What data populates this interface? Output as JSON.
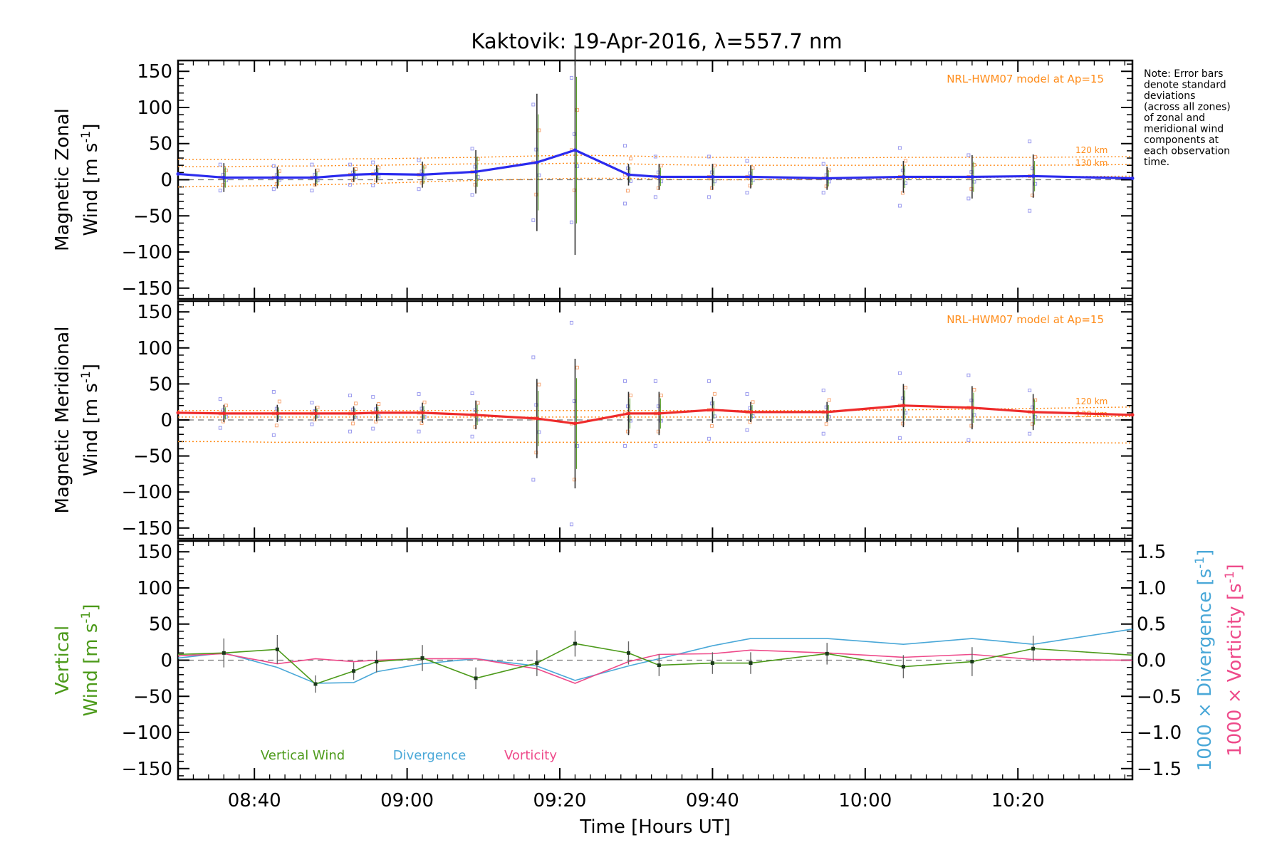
{
  "title": "Kaktovik: 19-Apr-2016, λ=557.7 nm",
  "note_lines": [
    "Note: Error bars",
    "denote standard",
    "deviations",
    "(across all zones)",
    "of zonal and",
    "meridional wind",
    "components at",
    "each observation",
    "time."
  ],
  "colors": {
    "zonal": "#2b2bee",
    "meridional": "#ee2b2b",
    "model": "#ff8c1a",
    "vertical": "#4c9a1a",
    "divergence": "#4aa8d8",
    "vorticity": "#ee4a8a",
    "zone_blue": "#9a9aee",
    "zone_orange": "#f7a878",
    "errorbar": "#333333"
  },
  "chart_data": [
    {
      "type": "line",
      "panel": "zonal",
      "ylabel_line1": "Magnetic Zonal",
      "ylabel_line2": "Wind [m s",
      "ylabel_sup": "-1",
      "ylabel_close": "]",
      "model_label": "NRL-HWM07 model at Ap=15",
      "model_alt_labels": [
        "120 km",
        "130 km"
      ],
      "ylim": [
        -165,
        165
      ],
      "yticks": [
        -150,
        -100,
        -50,
        0,
        50,
        100,
        150
      ],
      "xlim": [
        "08:30",
        "10:35"
      ],
      "xticks": [
        "08:40",
        "09:00",
        "09:20",
        "09:40",
        "10:00",
        "10:20"
      ],
      "x": [
        "08:30",
        "08:36",
        "08:43",
        "08:48",
        "08:53",
        "08:56",
        "09:02",
        "09:09",
        "09:17",
        "09:22",
        "09:29",
        "09:33",
        "09:40",
        "09:45",
        "09:55",
        "10:05",
        "10:14",
        "10:22",
        "10:35"
      ],
      "values": [
        8,
        3,
        3,
        3,
        7,
        8,
        7,
        11,
        24,
        41,
        7,
        4,
        4,
        4,
        2,
        4,
        4,
        5,
        2
      ],
      "errors": [
        0,
        20,
        15,
        12,
        10,
        12,
        18,
        30,
        95,
        145,
        15,
        18,
        18,
        16,
        16,
        22,
        30,
        30,
        0
      ],
      "zone_spread": [
        0,
        18,
        16,
        18,
        14,
        16,
        20,
        32,
        80,
        100,
        40,
        28,
        28,
        22,
        20,
        40,
        30,
        48,
        25
      ],
      "model_series": [
        {
          "values": [
            28,
            28,
            28,
            28,
            29,
            29,
            30,
            31,
            33,
            34,
            33,
            32,
            31,
            31,
            30,
            31,
            31,
            31,
            32
          ]
        },
        {
          "values": [
            18,
            18,
            19,
            19,
            20,
            20,
            21,
            22,
            22,
            23,
            22,
            21,
            20,
            20,
            20,
            20,
            20,
            20,
            21
          ]
        },
        {
          "values": [
            -10,
            -9,
            -8,
            -7,
            -6,
            -5,
            -3,
            -1,
            1,
            2,
            2,
            1,
            0,
            0,
            1,
            2,
            3,
            4,
            5
          ]
        }
      ]
    },
    {
      "type": "line",
      "panel": "meridional",
      "ylabel_line1": "Magnetic Meridional",
      "ylabel_line2": "Wind [m s",
      "ylabel_sup": "-1",
      "ylabel_close": "]",
      "model_label": "NRL-HWM07 model at Ap=15",
      "model_alt_labels": [
        "120 km",
        "130 km"
      ],
      "ylim": [
        -165,
        165
      ],
      "yticks": [
        -150,
        -100,
        -50,
        0,
        50,
        100,
        150
      ],
      "xlim": [
        "08:30",
        "10:35"
      ],
      "xticks": [
        "08:40",
        "09:00",
        "09:20",
        "09:40",
        "10:00",
        "10:20"
      ],
      "x": [
        "08:30",
        "08:36",
        "08:43",
        "08:48",
        "08:53",
        "08:56",
        "09:02",
        "09:09",
        "09:17",
        "09:22",
        "09:29",
        "09:33",
        "09:40",
        "09:45",
        "09:55",
        "10:05",
        "10:14",
        "10:22",
        "10:35"
      ],
      "values": [
        10,
        9,
        9,
        9,
        9,
        10,
        10,
        7,
        2,
        -5,
        9,
        9,
        14,
        11,
        11,
        20,
        17,
        11,
        7
      ],
      "errors": [
        0,
        12,
        12,
        10,
        10,
        12,
        14,
        20,
        55,
        90,
        30,
        30,
        18,
        14,
        14,
        30,
        30,
        25,
        0
      ],
      "zone_spread": [
        0,
        20,
        30,
        15,
        25,
        22,
        26,
        30,
        85,
        140,
        45,
        45,
        40,
        25,
        30,
        45,
        45,
        30,
        30
      ],
      "model_series": [
        {
          "values": [
            13,
            13,
            13,
            13,
            13,
            13,
            13,
            13,
            13,
            13,
            13,
            13,
            13,
            13,
            13,
            14,
            15,
            16,
            18
          ]
        },
        {
          "values": [
            -30,
            -30,
            -31,
            -31,
            -31,
            -31,
            -31,
            -31,
            -31,
            -31,
            -31,
            -31,
            -31,
            -31,
            -31,
            -31,
            -31,
            -31,
            -32
          ]
        },
        {
          "values": [
            4,
            4,
            4,
            4,
            4,
            4,
            4,
            4,
            4,
            4,
            4,
            4,
            4,
            4,
            4,
            4,
            4,
            4,
            5
          ]
        }
      ]
    },
    {
      "type": "line",
      "panel": "vertical",
      "ylabel_line1": "Vertical",
      "ylabel_line2": "Wind [m s",
      "ylabel_sup": "-1",
      "ylabel_close": "]",
      "ylim": [
        -165,
        165
      ],
      "yticks": [
        -150,
        -100,
        -50,
        0,
        50,
        100,
        150
      ],
      "y2lim": [
        -1.65,
        1.65
      ],
      "y2ticks": [
        "-1.5",
        "-1.0",
        "-0.5",
        "0.0",
        "0.5",
        "1.0",
        "1.5"
      ],
      "y2label_div": "1000 × Divergence [s",
      "y2label_vor": "1000 × Vorticity [s",
      "y2label_sup": "-1",
      "y2label_close": "]",
      "xlim": [
        "08:30",
        "10:35"
      ],
      "xticks": [
        "08:40",
        "09:00",
        "09:20",
        "09:40",
        "10:00",
        "10:20"
      ],
      "xlabel": "Time [Hours UT]",
      "legend": [
        "Vertical Wind",
        "Divergence",
        "Vorticity"
      ],
      "series": [
        {
          "name": "Vertical Wind",
          "x": [
            "08:30",
            "08:36",
            "08:43",
            "08:48",
            "08:53",
            "08:56",
            "09:02",
            "09:09",
            "09:17",
            "09:22",
            "09:29",
            "09:33",
            "09:40",
            "09:45",
            "09:55",
            "10:05",
            "10:14",
            "10:22",
            "10:35"
          ],
          "values": [
            8,
            10,
            15,
            -33,
            -15,
            -2,
            3,
            -25,
            -4,
            23,
            10,
            -7,
            -4,
            -4,
            9,
            -9,
            -2,
            16,
            7
          ],
          "errors": [
            0,
            20,
            20,
            12,
            12,
            15,
            18,
            15,
            18,
            18,
            16,
            15,
            15,
            15,
            15,
            16,
            20,
            18,
            0
          ]
        },
        {
          "name": "Divergence",
          "x": [
            "08:30",
            "08:36",
            "08:43",
            "08:48",
            "08:53",
            "08:56",
            "09:02",
            "09:09",
            "09:17",
            "09:22",
            "09:29",
            "09:33",
            "09:40",
            "09:45",
            "09:55",
            "10:05",
            "10:14",
            "10:22",
            "10:35"
          ],
          "values": [
            0.03,
            0.1,
            -0.1,
            -0.32,
            -0.31,
            -0.16,
            -0.05,
            0.02,
            -0.08,
            -0.28,
            -0.08,
            0.02,
            0.2,
            0.3,
            0.3,
            0.22,
            0.3,
            0.22,
            0.43
          ]
        },
        {
          "name": "Vorticity",
          "x": [
            "08:30",
            "08:36",
            "08:43",
            "08:48",
            "08:53",
            "08:56",
            "09:02",
            "09:09",
            "09:17",
            "09:22",
            "09:29",
            "09:33",
            "09:40",
            "09:45",
            "09:55",
            "10:05",
            "10:14",
            "10:22",
            "10:35"
          ],
          "values": [
            0.06,
            0.09,
            -0.05,
            0.02,
            -0.02,
            0.0,
            0.02,
            0.02,
            -0.12,
            -0.32,
            -0.02,
            0.08,
            0.09,
            0.14,
            0.1,
            0.04,
            0.08,
            0.01,
            0.0
          ]
        }
      ]
    }
  ]
}
